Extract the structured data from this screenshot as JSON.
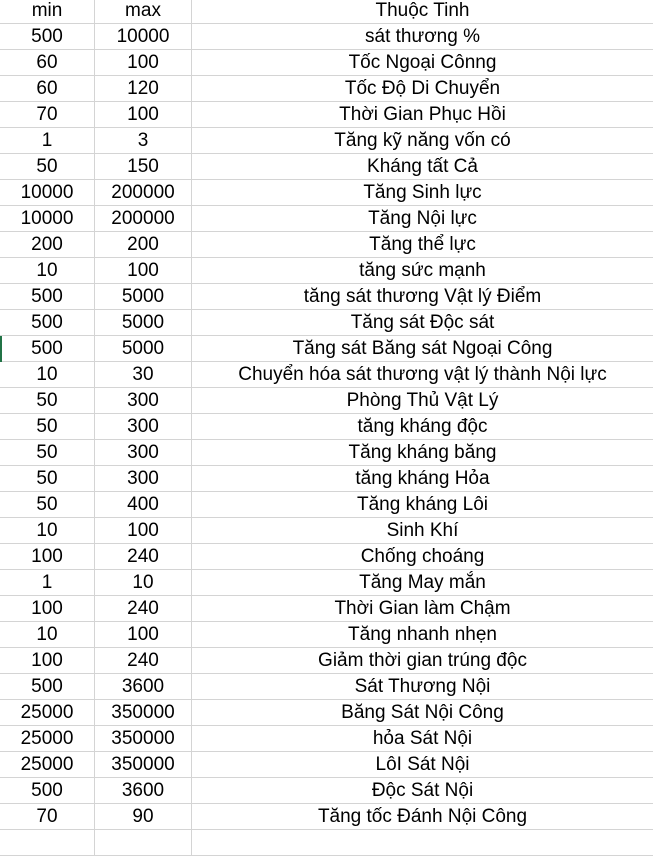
{
  "sheet": {
    "headers": [
      "min",
      "max",
      "Thuộc Tinh"
    ],
    "rows": [
      [
        "500",
        "10000",
        "sát thương %"
      ],
      [
        "60",
        "100",
        "Tốc Ngoại Cônng"
      ],
      [
        "60",
        "120",
        "Tốc Độ Di Chuyển"
      ],
      [
        "70",
        "100",
        "Thời Gian Phục Hồi"
      ],
      [
        "1",
        "3",
        "Tăng kỹ năng vốn có"
      ],
      [
        "50",
        "150",
        "Kháng tất Cả"
      ],
      [
        "10000",
        "200000",
        "Tăng Sinh lực"
      ],
      [
        "10000",
        "200000",
        "Tăng Nội lực"
      ],
      [
        "200",
        "200",
        "Tăng thể lực"
      ],
      [
        "10",
        "100",
        "tăng sức mạnh"
      ],
      [
        "500",
        "5000",
        "tăng sát thương Vật lý  Điểm"
      ],
      [
        "500",
        "5000",
        "Tăng sát Độc sát"
      ],
      [
        "500",
        "5000",
        "Tăng sát Băng sát Ngoại Công"
      ],
      [
        "10",
        "30",
        "Chuyển hóa sát thương vật lý thành Nội lực"
      ],
      [
        "50",
        "300",
        "Phòng Thủ Vật Lý"
      ],
      [
        "50",
        "300",
        "tăng kháng độc"
      ],
      [
        "50",
        "300",
        "Tăng kháng băng"
      ],
      [
        "50",
        "300",
        "tăng kháng Hỏa"
      ],
      [
        "50",
        "400",
        "Tăng kháng Lôi"
      ],
      [
        "10",
        "100",
        "Sinh Khí"
      ],
      [
        "100",
        "240",
        "Chống choáng"
      ],
      [
        "1",
        "10",
        "Tăng May mắn"
      ],
      [
        "100",
        "240",
        "Thời Gian làm Chậm"
      ],
      [
        "10",
        "100",
        "Tăng nhanh nhẹn"
      ],
      [
        "100",
        "240",
        "Giảm thời gian trúng độc"
      ],
      [
        "500",
        "3600",
        "Sát Thương Nội"
      ],
      [
        "25000",
        "350000",
        "Băng Sát Nội Công"
      ],
      [
        "25000",
        "350000",
        "hỏa Sát Nội"
      ],
      [
        "25000",
        "350000",
        "LôI Sát Nội"
      ],
      [
        "500",
        "3600",
        "Độc Sát Nội"
      ],
      [
        "70",
        "90",
        "Tăng tốc Đánh Nội Công"
      ]
    ],
    "selection_color": "#217346",
    "gridline_color": "#d4d4d4"
  }
}
